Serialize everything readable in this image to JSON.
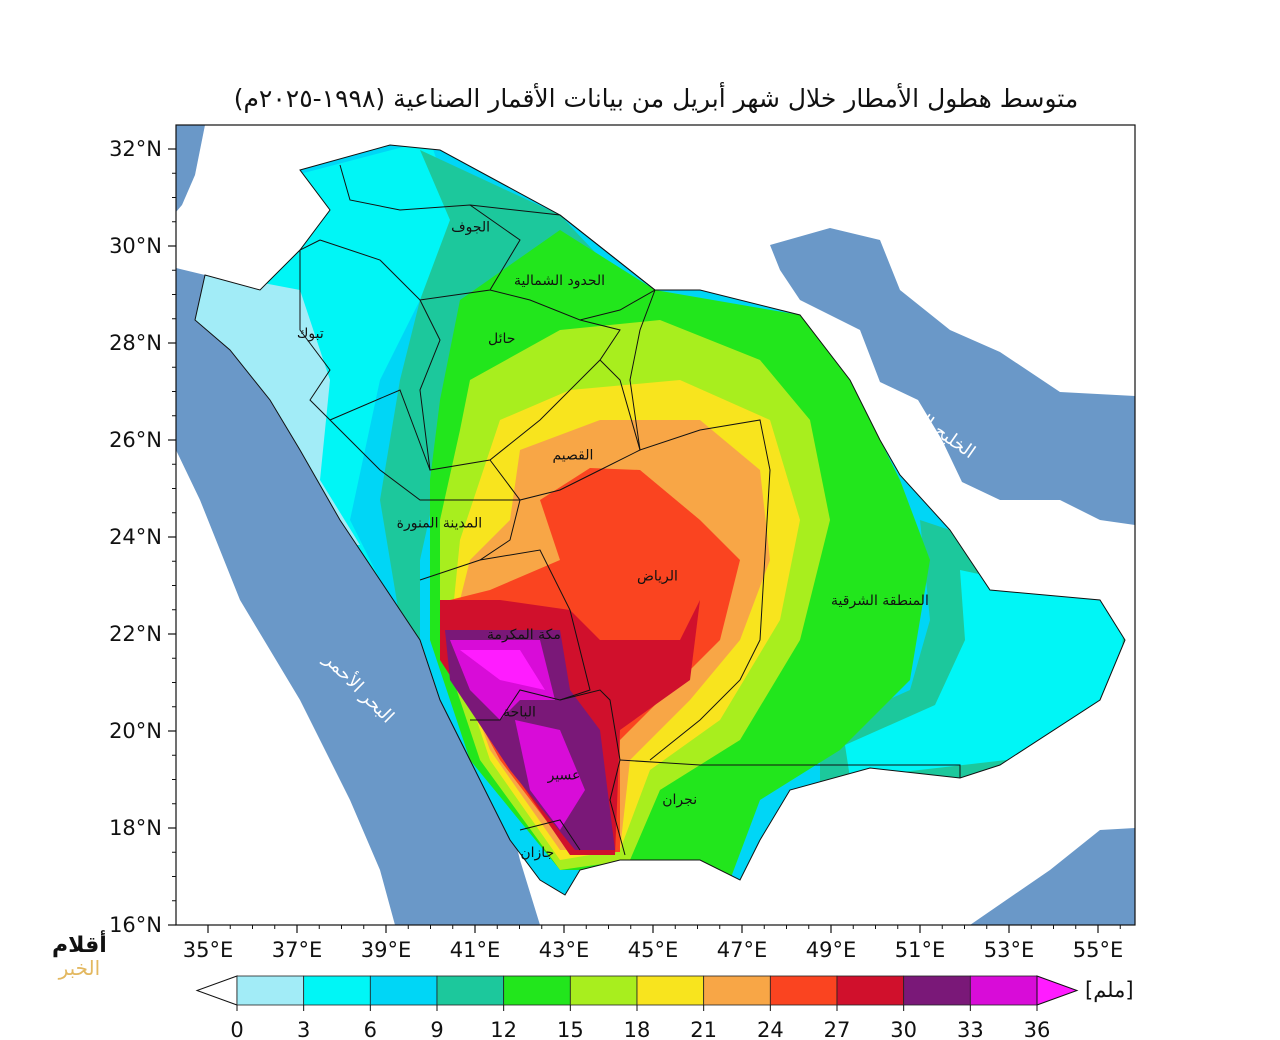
{
  "title": "متوسط هطول الأمطار خلال شهر أبريل من بيانات الأقمار الصناعية (١٩٩٨-٢٠٢٥م)",
  "axes": {
    "lat_ticks": [
      "32°N",
      "30°N",
      "28°N",
      "26°N",
      "24°N",
      "22°N",
      "20°N",
      "18°N",
      "16°N"
    ],
    "lat_values": [
      32,
      30,
      28,
      26,
      24,
      22,
      20,
      18,
      16
    ],
    "lon_ticks": [
      "35°E",
      "37°E",
      "39°E",
      "41°E",
      "43°E",
      "45°E",
      "47°E",
      "49°E",
      "51°E",
      "53°E",
      "55°E"
    ],
    "lon_values": [
      35,
      37,
      39,
      41,
      43,
      45,
      47,
      49,
      51,
      53,
      55
    ]
  },
  "colorbar": {
    "unit": "[ملم]",
    "levels": [
      "0",
      "3",
      "6",
      "9",
      "12",
      "15",
      "18",
      "21",
      "24",
      "27",
      "30",
      "33",
      "36"
    ],
    "colors": [
      "#a2ecf7",
      "#00f6f6",
      "#00d6f6",
      "#1cc89c",
      "#22e61c",
      "#a8ee1e",
      "#f8e41e",
      "#f8a646",
      "#fa4420",
      "#d0102c",
      "#7a1878",
      "#d80cd8"
    ],
    "under_color": "#ffffff",
    "over_color": "#ff1cff"
  },
  "map": {
    "sea_color": "#6a98c8",
    "regions": [
      {
        "name": "الجوف",
        "lon": 40.9,
        "lat": 30.3
      },
      {
        "name": "الحدود الشمالية",
        "lon": 42.9,
        "lat": 29.2
      },
      {
        "name": "تبوك",
        "lon": 37.3,
        "lat": 28.1
      },
      {
        "name": "حائل",
        "lon": 41.6,
        "lat": 28.0
      },
      {
        "name": "القصيم",
        "lon": 43.2,
        "lat": 25.6
      },
      {
        "name": "المدينة المنورة",
        "lon": 40.2,
        "lat": 24.2
      },
      {
        "name": "الرياض",
        "lon": 45.1,
        "lat": 23.1
      },
      {
        "name": "المنطقة الشرقية",
        "lon": 50.1,
        "lat": 22.6
      },
      {
        "name": "مكة المكرمة",
        "lon": 42.1,
        "lat": 21.9
      },
      {
        "name": "الباحة",
        "lon": 42.0,
        "lat": 20.3
      },
      {
        "name": "عسير",
        "lon": 43.0,
        "lat": 19.0
      },
      {
        "name": "نجران",
        "lon": 45.6,
        "lat": 18.5
      },
      {
        "name": "جازان",
        "lon": 42.4,
        "lat": 17.4
      }
    ],
    "seas": [
      {
        "name": "البحر الأحمر",
        "lon": 38.3,
        "lat": 20.8,
        "rotate": 45
      },
      {
        "name": "الخليج العربي",
        "lon": 51.2,
        "lat": 26.2,
        "rotate": 35
      }
    ]
  },
  "logo": {
    "line1": "أقلام",
    "line2": "الخبر"
  }
}
